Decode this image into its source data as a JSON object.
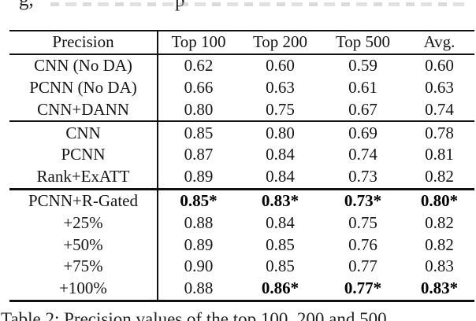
{
  "fragments": {
    "top_left": "g,",
    "top_mid": "p"
  },
  "table": {
    "header": [
      "Precision",
      "Top 100",
      "Top 200",
      "Top 500",
      "Avg."
    ],
    "groups": [
      {
        "rows": [
          {
            "label": "CNN (No DA)",
            "values": [
              "0.62",
              "0.60",
              "0.59",
              "0.60"
            ],
            "bold": [
              false,
              false,
              false,
              false
            ]
          },
          {
            "label": "PCNN (No DA)",
            "values": [
              "0.66",
              "0.63",
              "0.61",
              "0.63"
            ],
            "bold": [
              false,
              false,
              false,
              false
            ]
          },
          {
            "label": "CNN+DANN",
            "values": [
              "0.80",
              "0.75",
              "0.67",
              "0.74"
            ],
            "bold": [
              false,
              false,
              false,
              false
            ]
          }
        ]
      },
      {
        "rows": [
          {
            "label": "CNN",
            "values": [
              "0.85",
              "0.80",
              "0.69",
              "0.78"
            ],
            "bold": [
              false,
              false,
              false,
              false
            ]
          },
          {
            "label": "PCNN",
            "values": [
              "0.87",
              "0.84",
              "0.74",
              "0.81"
            ],
            "bold": [
              false,
              false,
              false,
              false
            ]
          },
          {
            "label": "Rank+ExATT",
            "values": [
              "0.89",
              "0.84",
              "0.73",
              "0.82"
            ],
            "bold": [
              false,
              false,
              false,
              false
            ]
          }
        ]
      },
      {
        "rows": [
          {
            "label": "PCNN+R-Gated",
            "values": [
              "0.85*",
              "0.83*",
              "0.73*",
              "0.80*"
            ],
            "bold": [
              true,
              true,
              true,
              true
            ]
          },
          {
            "label": "+25%",
            "values": [
              "0.88",
              "0.84",
              "0.75",
              "0.82"
            ],
            "bold": [
              false,
              false,
              false,
              false
            ]
          },
          {
            "label": "+50%",
            "values": [
              "0.89",
              "0.85",
              "0.76",
              "0.82"
            ],
            "bold": [
              false,
              false,
              false,
              false
            ]
          },
          {
            "label": "+75%",
            "values": [
              "0.90",
              "0.85",
              "0.77",
              "0.83"
            ],
            "bold": [
              false,
              false,
              false,
              false
            ]
          },
          {
            "label": "+100%",
            "values": [
              "0.88",
              "0.86*",
              "0.77*",
              "0.83*"
            ],
            "bold": [
              false,
              true,
              true,
              true
            ]
          }
        ]
      }
    ]
  },
  "caption": {
    "text": "Table 2: Precision values of the top 100, 200 and 500"
  }
}
